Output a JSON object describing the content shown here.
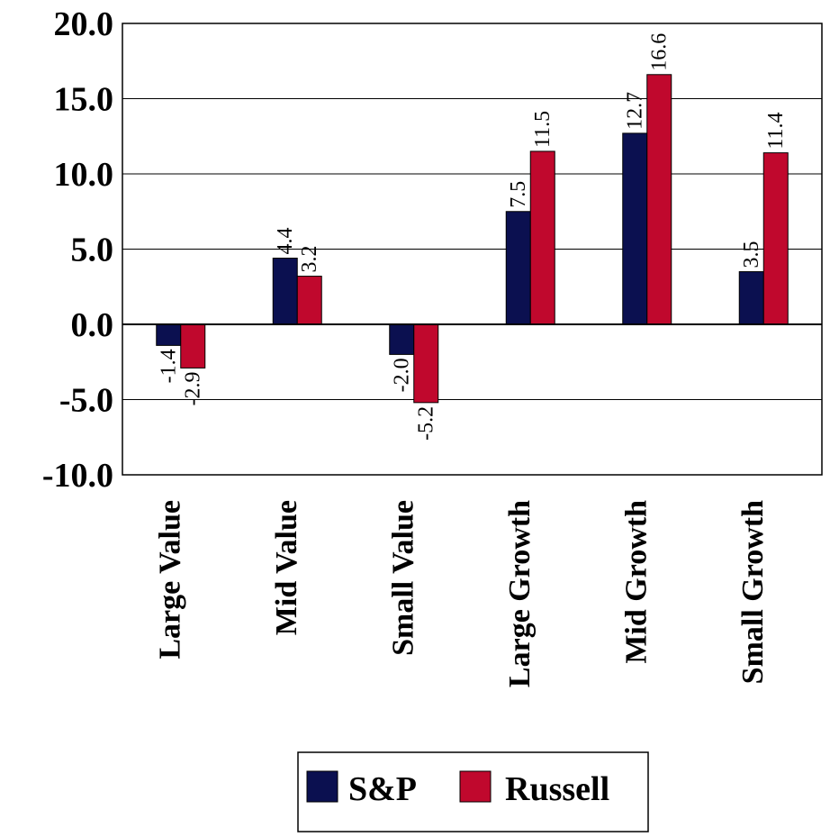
{
  "chart_data": {
    "type": "bar",
    "categories": [
      "Large Value",
      "Mid Value",
      "Small Value",
      "Large Growth",
      "Mid Growth",
      "Small Growth"
    ],
    "series": [
      {
        "name": "S&P",
        "color": "#0b1050",
        "values": [
          -1.4,
          4.4,
          -2.0,
          7.5,
          12.7,
          3.5
        ]
      },
      {
        "name": "Russell",
        "color": "#c0082d",
        "values": [
          -2.9,
          3.2,
          -5.2,
          11.5,
          16.6,
          11.4
        ]
      }
    ],
    "data_labels": [
      [
        "-1.4",
        "4.4",
        "-2.0",
        "7.5",
        "12.7",
        "3.5"
      ],
      [
        "-2.9",
        "3.2",
        "-5.2",
        "11.5",
        "16.6",
        "11.4"
      ]
    ],
    "ylim": [
      -10,
      20
    ],
    "yticks": [
      20,
      15,
      10,
      5,
      0,
      -5,
      -10
    ],
    "ytick_labels": [
      "20.0",
      "15.0",
      "10.0",
      "5.0",
      "0.0",
      "-5.0",
      "-10.0"
    ],
    "grid": "horizontal",
    "legend_position": "bottom"
  }
}
